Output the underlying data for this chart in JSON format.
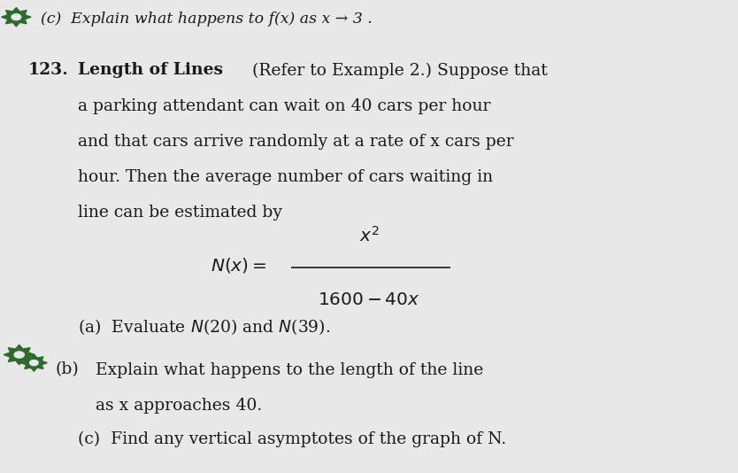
{
  "background_color": "#e8e8e8",
  "text_color": "#1a1a1a",
  "gear_color": "#2d6b2d",
  "fig_width": 8.34,
  "fig_height": 5.34,
  "font_size": 13.5,
  "header_line": "(c)  Explain what happens to f(x) as x → 3 .",
  "problem_number": "123.",
  "title_bold": "Length of Lines",
  "title_rest": " (Refer to Example 2.) Suppose that",
  "body_lines": [
    "a parking attendant can wait on 40 cars per hour",
    "and that cars arrive randomly at a rate of x cars per",
    "hour. Then the average number of cars waiting in",
    "line can be estimated by"
  ],
  "part_a": "(a)  Evaluate N(20) and N(39).",
  "part_b_prefix": "(b)",
  "part_b_line1": "Explain what happens to the length of the line",
  "part_b_line2": "as x approaches 40.",
  "part_c": "(c)  Find any vertical asymptotes of the graph of N."
}
